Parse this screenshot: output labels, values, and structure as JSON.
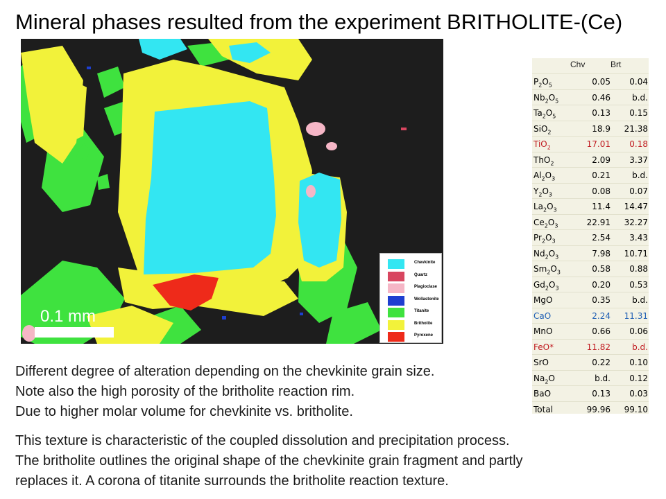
{
  "title": "Mineral phases resulted from the experiment  BRITHOLITE-(Ce)",
  "scale_label": "0.1 mm",
  "legend": [
    {
      "label": "Chevkinite",
      "color": "#33e6f2"
    },
    {
      "label": "Quartz",
      "color": "#d84660"
    },
    {
      "label": "Plagioclase",
      "color": "#f5b6c6"
    },
    {
      "label": "Wollastonite",
      "color": "#1e3fd0"
    },
    {
      "label": "Titanite",
      "color": "#3fe23f"
    },
    {
      "label": "Britholite",
      "color": "#f2f23a"
    },
    {
      "label": "Pyroxene",
      "color": "#ee2a1a"
    }
  ],
  "table": {
    "headers": [
      "Chv",
      "Brt"
    ],
    "rows": [
      {
        "ox": "P",
        "sub1": "2",
        "o": "O",
        "sub2": "5",
        "chv": "0.05",
        "brt": "0.04",
        "color": ""
      },
      {
        "ox": "Nb",
        "sub1": "2",
        "o": "O",
        "sub2": "5",
        "chv": "0.46",
        "brt": "b.d.",
        "color": ""
      },
      {
        "ox": "Ta",
        "sub1": "2",
        "o": "O",
        "sub2": "5",
        "chv": "0.13",
        "brt": "0.15",
        "color": ""
      },
      {
        "ox": "SiO",
        "sub1": "2",
        "o": "",
        "sub2": "",
        "chv": "18.9",
        "brt": "21.38",
        "color": ""
      },
      {
        "ox": "TiO",
        "sub1": "2",
        "o": "",
        "sub2": "",
        "chv": "17.01",
        "brt": "0.18",
        "color": "#c0191f"
      },
      {
        "ox": "ThO",
        "sub1": "2",
        "o": "",
        "sub2": "",
        "chv": "2.09",
        "brt": "3.37",
        "color": ""
      },
      {
        "ox": "Al",
        "sub1": "2",
        "o": "O",
        "sub2": "3",
        "chv": "0.21",
        "brt": "b.d.",
        "color": ""
      },
      {
        "ox": "Y",
        "sub1": "2",
        "o": "O",
        "sub2": "3",
        "chv": "0.08",
        "brt": "0.07",
        "color": ""
      },
      {
        "ox": "La",
        "sub1": "2",
        "o": "O",
        "sub2": "3",
        "chv": "11.4",
        "brt": "14.47",
        "color": ""
      },
      {
        "ox": "Ce",
        "sub1": "2",
        "o": "O",
        "sub2": "3",
        "chv": "22.91",
        "brt": "32.27",
        "color": ""
      },
      {
        "ox": "Pr",
        "sub1": "2",
        "o": "O",
        "sub2": "3",
        "chv": "2.54",
        "brt": "3.43",
        "color": ""
      },
      {
        "ox": "Nd",
        "sub1": "2",
        "o": "O",
        "sub2": "3",
        "chv": "7.98",
        "brt": "10.71",
        "color": ""
      },
      {
        "ox": "Sm",
        "sub1": "2",
        "o": "O",
        "sub2": "3",
        "chv": "0.58",
        "brt": "0.88",
        "color": ""
      },
      {
        "ox": "Gd",
        "sub1": "2",
        "o": "O",
        "sub2": "3",
        "chv": "0.20",
        "brt": "0.53",
        "color": ""
      },
      {
        "ox": "MgO",
        "sub1": "",
        "o": "",
        "sub2": "",
        "chv": "0.35",
        "brt": "b.d.",
        "color": ""
      },
      {
        "ox": "CaO",
        "sub1": "",
        "o": "",
        "sub2": "",
        "chv": "2.24",
        "brt": "11.31",
        "color": "#1f5fb4"
      },
      {
        "ox": "MnO",
        "sub1": "",
        "o": "",
        "sub2": "",
        "chv": "0.66",
        "brt": "0.06",
        "color": ""
      },
      {
        "ox": "FeO*",
        "sub1": "",
        "o": "",
        "sub2": "",
        "chv": "11.82",
        "brt": "b.d.",
        "color": "#c0191f"
      },
      {
        "ox": "SrO",
        "sub1": "",
        "o": "",
        "sub2": "",
        "chv": "0.22",
        "brt": "0.10",
        "color": ""
      },
      {
        "ox": "Na",
        "sub1": "2",
        "o": "O",
        "sub2": "",
        "chv": "b.d.",
        "brt": "0.12",
        "color": ""
      },
      {
        "ox": "BaO",
        "sub1": "",
        "o": "",
        "sub2": "",
        "chv": "0.13",
        "brt": "0.03",
        "color": ""
      },
      {
        "ox": "Total",
        "sub1": "",
        "o": "",
        "sub2": "",
        "chv": "99.96",
        "brt": "99.10",
        "color": ""
      }
    ]
  },
  "caption": [
    "Different degree of alteration depending on the chevkinite grain size.",
    "Note also the high porosity of the britholite reaction rim.",
    "Due to higher molar volume for chevkinite vs. britholite."
  ],
  "summary": [
    "This texture is characteristic of the coupled dissolution and precipitation process.",
    "The britholite outlines the original shape of the chevkinite grain fragment and partly",
    "replaces it.  A corona of titanite surrounds the britholite reaction texture."
  ]
}
